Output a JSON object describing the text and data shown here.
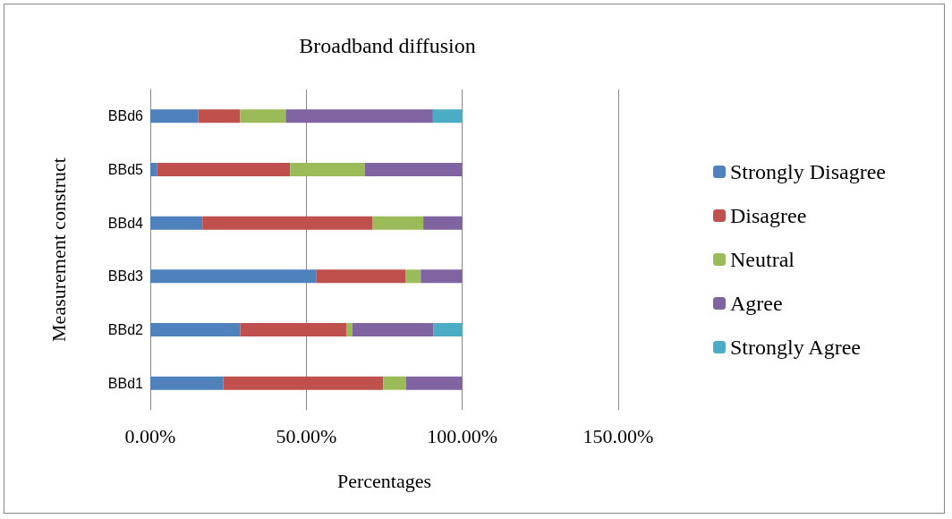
{
  "chart_data": {
    "type": "bar",
    "orientation": "horizontal",
    "stacked": true,
    "title": "Broadband diffusion",
    "xlabel": "Percentages",
    "ylabel": "Measurement construct",
    "categories": [
      "BBd6",
      "BBd5",
      "BBd4",
      "BBd3",
      "BBd2",
      "BBd1"
    ],
    "series": [
      {
        "name": "Strongly Disagree",
        "color": "#4f81bd",
        "values": [
          15.3,
          2.1,
          16.7,
          53.3,
          28.8,
          23.4
        ]
      },
      {
        "name": "Disagree",
        "color": "#c0504d",
        "values": [
          13.5,
          42.7,
          54.6,
          28.6,
          34.0,
          51.3
        ]
      },
      {
        "name": "Neutral",
        "color": "#9bbb59",
        "values": [
          14.6,
          23.9,
          16.2,
          4.8,
          2.0,
          7.2
        ]
      },
      {
        "name": "Agree",
        "color": "#8064a2",
        "values": [
          47.2,
          31.3,
          12.5,
          13.3,
          26.0,
          18.1
        ]
      },
      {
        "name": "Strongly Agree",
        "color": "#4bacc6",
        "values": [
          9.4,
          0,
          0,
          0,
          9.2,
          0
        ]
      }
    ],
    "xlim": [
      0,
      150
    ],
    "xticks": [
      {
        "value": 0,
        "label": "0.00%"
      },
      {
        "value": 50,
        "label": "50.00%"
      },
      {
        "value": 100,
        "label": "100.00%"
      },
      {
        "value": 150,
        "label": "150.00%"
      }
    ],
    "grid": "x",
    "legend": "right"
  }
}
